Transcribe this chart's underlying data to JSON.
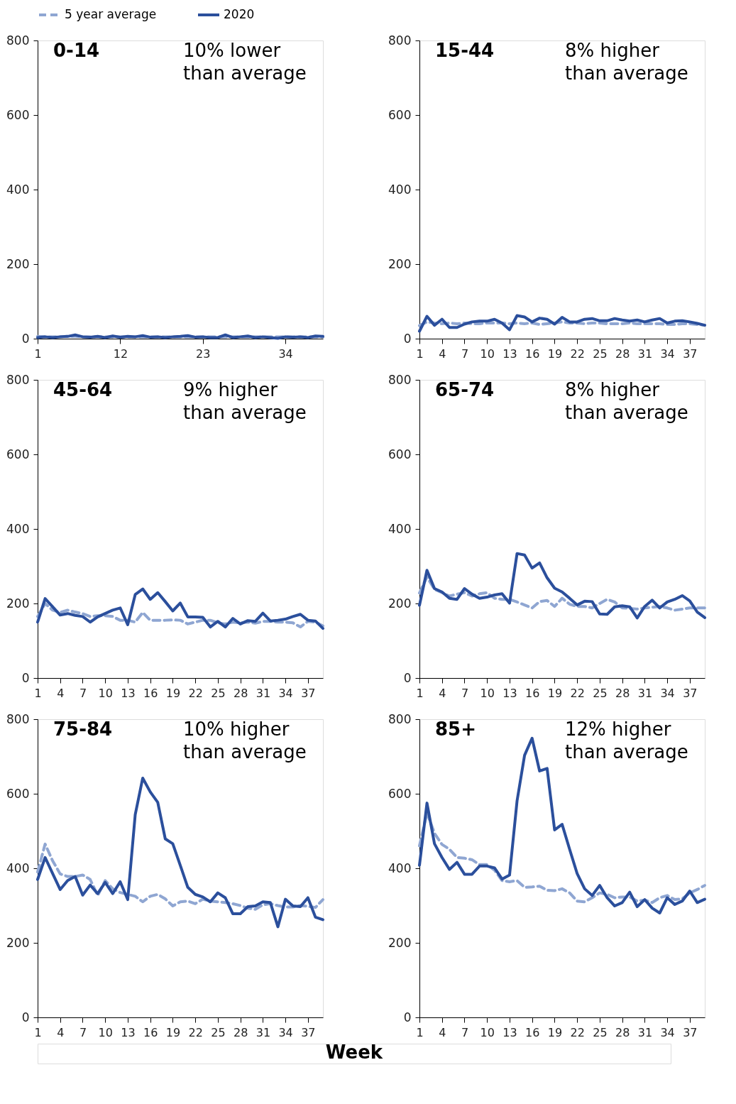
{
  "chart_data": [
    {
      "type": "line",
      "title": "0-14",
      "annotations": [
        "10% lower\nthan average"
      ],
      "x": [
        1,
        2,
        3,
        4,
        5,
        6,
        7,
        8,
        9,
        10,
        11,
        12,
        13,
        14,
        15,
        16,
        17,
        18,
        19,
        20,
        21,
        22,
        23,
        24,
        25,
        26,
        27,
        28,
        29,
        30,
        31,
        32,
        33,
        34,
        35,
        36,
        37,
        38,
        39
      ],
      "xlim": [
        1,
        39
      ],
      "xticks": [
        1,
        12,
        23,
        34
      ],
      "ylim": [
        0,
        800
      ],
      "yticks": [
        0,
        200,
        400,
        600,
        800
      ],
      "legend": "top",
      "series": [
        {
          "name": "5 year average",
          "color": "#8fa6d2",
          "line_style": "dashed",
          "values": [
            6,
            5,
            5,
            5,
            6,
            6,
            5,
            5,
            5,
            5,
            5,
            5,
            5,
            5,
            5,
            5,
            5,
            5,
            5,
            5,
            5,
            5,
            5,
            5,
            5,
            5,
            5,
            5,
            5,
            5,
            5,
            5,
            5,
            5,
            5,
            5,
            5,
            5,
            5
          ]
        },
        {
          "name": "2020",
          "color": "#2b4f9c",
          "line_style": "solid",
          "values": [
            3,
            5,
            3,
            5,
            6,
            10,
            5,
            4,
            6,
            3,
            7,
            4,
            6,
            5,
            8,
            4,
            5,
            3,
            5,
            6,
            8,
            4,
            5,
            3,
            3,
            10,
            3,
            5,
            7,
            3,
            5,
            3,
            1,
            5,
            4,
            5,
            3,
            7,
            6
          ]
        }
      ]
    },
    {
      "type": "line",
      "title": "15-44",
      "annotations": [
        "8% higher\nthan average"
      ],
      "x": [
        1,
        2,
        3,
        4,
        5,
        6,
        7,
        8,
        9,
        10,
        11,
        12,
        13,
        14,
        15,
        16,
        17,
        18,
        19,
        20,
        21,
        22,
        23,
        24,
        25,
        26,
        27,
        28,
        29,
        30,
        31,
        32,
        33,
        34,
        35,
        36,
        37,
        38,
        39
      ],
      "xlim": [
        1,
        39
      ],
      "xticks": [
        1,
        4,
        7,
        10,
        13,
        16,
        19,
        22,
        25,
        28,
        31,
        34,
        37
      ],
      "ylim": [
        0,
        800
      ],
      "yticks": [
        0,
        200,
        400,
        600,
        800
      ],
      "series": [
        {
          "name": "5 year average",
          "color": "#8fa6d2",
          "line_style": "dashed",
          "values": [
            35,
            45,
            42,
            40,
            42,
            40,
            42,
            40,
            40,
            42,
            42,
            42,
            40,
            42,
            40,
            42,
            38,
            40,
            42,
            45,
            42,
            42,
            40,
            42,
            42,
            40,
            40,
            40,
            42,
            40,
            40,
            40,
            40,
            38,
            38,
            40,
            40,
            38,
            36
          ]
        },
        {
          "name": "2020",
          "color": "#2b4f9c",
          "line_style": "solid",
          "values": [
            20,
            60,
            36,
            52,
            30,
            30,
            39,
            45,
            47,
            47,
            52,
            42,
            24,
            62,
            58,
            45,
            55,
            52,
            39,
            57,
            45,
            45,
            52,
            54,
            48,
            48,
            54,
            50,
            47,
            50,
            45,
            50,
            54,
            42,
            47,
            48,
            45,
            41,
            36
          ]
        }
      ]
    },
    {
      "type": "line",
      "title": "45-64",
      "annotations": [
        "9% higher\nthan average"
      ],
      "x": [
        1,
        2,
        3,
        4,
        5,
        6,
        7,
        8,
        9,
        10,
        11,
        12,
        13,
        14,
        15,
        16,
        17,
        18,
        19,
        20,
        21,
        22,
        23,
        24,
        25,
        26,
        27,
        28,
        29,
        30,
        31,
        32,
        33,
        34,
        35,
        36,
        37,
        38,
        39
      ],
      "xlim": [
        1,
        39
      ],
      "xticks": [
        1,
        4,
        7,
        10,
        13,
        16,
        19,
        22,
        25,
        28,
        31,
        34,
        37
      ],
      "ylim": [
        0,
        800
      ],
      "yticks": [
        0,
        200,
        400,
        600,
        800
      ],
      "series": [
        {
          "name": "5 year average",
          "color": "#8fa6d2",
          "line_style": "dashed",
          "values": [
            165,
            200,
            182,
            176,
            182,
            177,
            173,
            165,
            167,
            167,
            165,
            155,
            155,
            150,
            176,
            155,
            155,
            155,
            156,
            155,
            145,
            150,
            155,
            155,
            148,
            145,
            150,
            148,
            150,
            147,
            152,
            152,
            150,
            150,
            148,
            137,
            152,
            150,
            140
          ]
        },
        {
          "name": "2020",
          "color": "#2b4f9c",
          "line_style": "solid",
          "values": [
            150,
            213,
            191,
            169,
            173,
            168,
            165,
            150,
            164,
            173,
            182,
            188,
            143,
            224,
            239,
            211,
            229,
            205,
            180,
            201,
            164,
            164,
            163,
            137,
            152,
            137,
            160,
            145,
            154,
            152,
            174,
            153,
            155,
            158,
            165,
            171,
            155,
            153,
            133
          ]
        }
      ]
    },
    {
      "type": "line",
      "title": "65-74",
      "annotations": [
        "8% higher\nthan average"
      ],
      "x": [
        1,
        2,
        3,
        4,
        5,
        6,
        7,
        8,
        9,
        10,
        11,
        12,
        13,
        14,
        15,
        16,
        17,
        18,
        19,
        20,
        21,
        22,
        23,
        24,
        25,
        26,
        27,
        28,
        29,
        30,
        31,
        32,
        33,
        34,
        35,
        36,
        37,
        38,
        39
      ],
      "xlim": [
        1,
        39
      ],
      "xticks": [
        1,
        4,
        7,
        10,
        13,
        16,
        19,
        22,
        25,
        28,
        31,
        34,
        37
      ],
      "ylim": [
        0,
        800
      ],
      "yticks": [
        0,
        200,
        400,
        600,
        800
      ],
      "series": [
        {
          "name": "5 year average",
          "color": "#8fa6d2",
          "line_style": "dashed",
          "values": [
            228,
            271,
            238,
            229,
            220,
            225,
            229,
            220,
            226,
            229,
            214,
            211,
            211,
            204,
            196,
            188,
            205,
            208,
            192,
            214,
            198,
            192,
            192,
            188,
            200,
            211,
            204,
            188,
            187,
            185,
            188,
            190,
            192,
            188,
            182,
            185,
            188,
            188,
            188
          ]
        },
        {
          "name": "2020",
          "color": "#2b4f9c",
          "line_style": "solid",
          "values": [
            195,
            289,
            240,
            231,
            214,
            211,
            240,
            225,
            214,
            217,
            223,
            226,
            201,
            334,
            330,
            295,
            309,
            269,
            241,
            231,
            214,
            196,
            206,
            205,
            172,
            171,
            191,
            194,
            191,
            161,
            192,
            209,
            188,
            204,
            211,
            221,
            207,
            177,
            162
          ]
        }
      ]
    },
    {
      "type": "line",
      "title": "75-84",
      "annotations": [
        "10% higher\nthan average"
      ],
      "xlabel": "Week",
      "x": [
        1,
        2,
        3,
        4,
        5,
        6,
        7,
        8,
        9,
        10,
        11,
        12,
        13,
        14,
        15,
        16,
        17,
        18,
        19,
        20,
        21,
        22,
        23,
        24,
        25,
        26,
        27,
        28,
        29,
        30,
        31,
        32,
        33,
        34,
        35,
        36,
        37,
        38,
        39
      ],
      "xlim": [
        1,
        39
      ],
      "xticks": [
        1,
        4,
        7,
        10,
        13,
        16,
        19,
        22,
        25,
        28,
        31,
        34,
        37
      ],
      "ylim": [
        0,
        800
      ],
      "yticks": [
        0,
        200,
        400,
        600,
        800
      ],
      "series": [
        {
          "name": "5 year average",
          "color": "#8fa6d2",
          "line_style": "dashed",
          "values": [
            390,
            465,
            420,
            385,
            378,
            378,
            382,
            370,
            327,
            367,
            345,
            335,
            330,
            325,
            310,
            325,
            330,
            318,
            299,
            310,
            312,
            305,
            317,
            312,
            310,
            308,
            305,
            300,
            293,
            290,
            302,
            305,
            300,
            296,
            296,
            300,
            298,
            295,
            316
          ]
        },
        {
          "name": "2020",
          "color": "#2b4f9c",
          "line_style": "solid",
          "values": [
            370,
            429,
            386,
            343,
            367,
            378,
            328,
            355,
            332,
            362,
            332,
            364,
            316,
            544,
            642,
            605,
            577,
            479,
            466,
            408,
            349,
            330,
            323,
            310,
            334,
            321,
            278,
            278,
            297,
            299,
            310,
            308,
            243,
            317,
            299,
            297,
            321,
            269,
            262
          ]
        }
      ]
    },
    {
      "type": "line",
      "title": "85+",
      "annotations": [
        "12% higher\nthan average"
      ],
      "x": [
        1,
        2,
        3,
        4,
        5,
        6,
        7,
        8,
        9,
        10,
        11,
        12,
        13,
        14,
        15,
        16,
        17,
        18,
        19,
        20,
        21,
        22,
        23,
        24,
        25,
        26,
        27,
        28,
        29,
        30,
        31,
        32,
        33,
        34,
        35,
        36,
        37,
        38,
        39
      ],
      "xlim": [
        1,
        39
      ],
      "xticks": [
        1,
        4,
        7,
        10,
        13,
        16,
        19,
        22,
        25,
        28,
        31,
        34,
        37
      ],
      "ylim": [
        0,
        800
      ],
      "yticks": [
        0,
        200,
        400,
        600,
        800
      ],
      "series": [
        {
          "name": "5 year average",
          "color": "#8fa6d2",
          "line_style": "dashed",
          "values": [
            460,
            549,
            494,
            464,
            451,
            429,
            427,
            423,
            410,
            410,
            395,
            367,
            364,
            367,
            349,
            350,
            352,
            341,
            340,
            345,
            334,
            312,
            310,
            321,
            334,
            330,
            321,
            323,
            323,
            312,
            315,
            308,
            321,
            327,
            316,
            318,
            334,
            343,
            354
          ]
        },
        {
          "name": "2020",
          "color": "#2b4f9c",
          "line_style": "solid",
          "values": [
            408,
            575,
            466,
            429,
            397,
            416,
            384,
            384,
            406,
            406,
            401,
            371,
            382,
            581,
            703,
            749,
            661,
            668,
            503,
            518,
            451,
            386,
            345,
            327,
            354,
            321,
            299,
            308,
            336,
            297,
            316,
            293,
            280,
            321,
            303,
            312,
            339,
            308,
            317
          ]
        }
      ]
    }
  ]
}
